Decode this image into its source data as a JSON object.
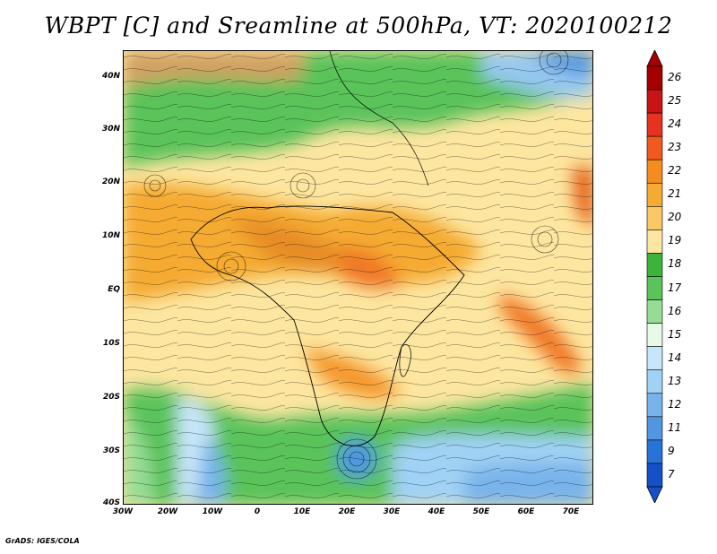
{
  "title": "WBPT [C] and Sreamline at 500hPa, VT: 2020100212",
  "credit": "GrADS: IGES/COLA",
  "map": {
    "lat_labels": [
      "40N",
      "30N",
      "20N",
      "10N",
      "EQ",
      "10S",
      "20S",
      "30S",
      "40S"
    ],
    "lon_labels": [
      "30W",
      "20W",
      "10W",
      "0",
      "10E",
      "20E",
      "30E",
      "40E",
      "50E",
      "60E",
      "70E"
    ],
    "lon_range": [
      -30,
      75
    ],
    "lat_range": [
      -40,
      45
    ]
  },
  "colorbar": {
    "labels": [
      "26",
      "25",
      "24",
      "23",
      "22",
      "21",
      "20",
      "19",
      "18",
      "17",
      "16",
      "15",
      "14",
      "13",
      "12",
      "11",
      "9",
      "7"
    ],
    "colors": [
      "#a50000",
      "#c81414",
      "#e6321e",
      "#f05a1e",
      "#f58c1e",
      "#f5aa32",
      "#fac864",
      "#fde6a0",
      "#3cb43c",
      "#5ac35a",
      "#96dc96",
      "#e6fae6",
      "#c8e6fa",
      "#a0d2f5",
      "#78b4eb",
      "#5096e1",
      "#2873d7",
      "#1450c8"
    ]
  }
}
